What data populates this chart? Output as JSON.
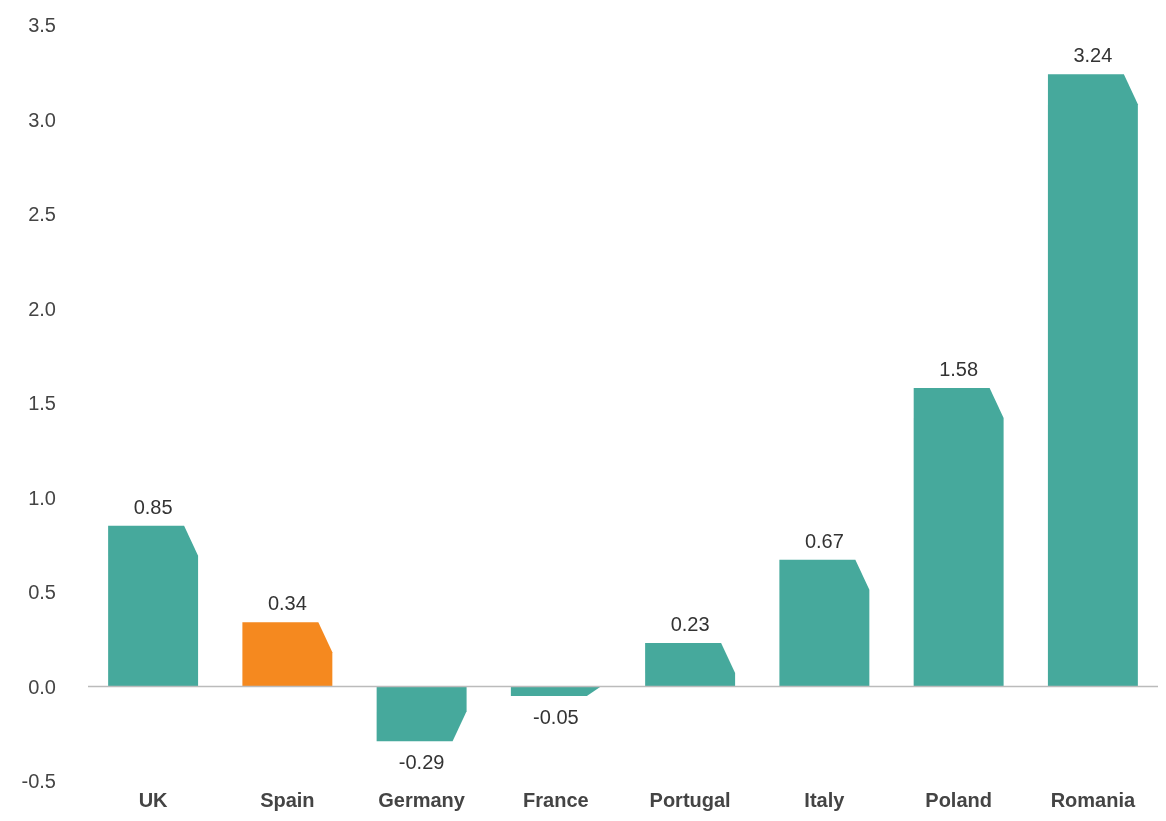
{
  "chart_data": {
    "type": "bar",
    "categories": [
      "UK",
      "Spain",
      "Germany",
      "France",
      "Portugal",
      "Italy",
      "Poland",
      "Romania"
    ],
    "values": [
      0.85,
      0.34,
      -0.29,
      -0.05,
      0.23,
      0.67,
      1.58,
      3.24
    ],
    "colors": [
      "#46a99c",
      "#f5891f",
      "#46a99c",
      "#46a99c",
      "#46a99c",
      "#46a99c",
      "#46a99c",
      "#46a99c"
    ],
    "ylim": [
      -0.5,
      3.5
    ],
    "yticks": [
      {
        "value": -0.5,
        "label": "-0.5"
      },
      {
        "value": 0,
        "label": "0.0"
      },
      {
        "value": 0.5,
        "label": "0.5"
      },
      {
        "value": 1,
        "label": "1.0"
      },
      {
        "value": 1.5,
        "label": "1.5"
      },
      {
        "value": 2,
        "label": "2.0"
      },
      {
        "value": 2.5,
        "label": "2.5"
      },
      {
        "value": 3,
        "label": "3.0"
      },
      {
        "value": 3.5,
        "label": "3.5"
      }
    ],
    "data_labels": true
  }
}
